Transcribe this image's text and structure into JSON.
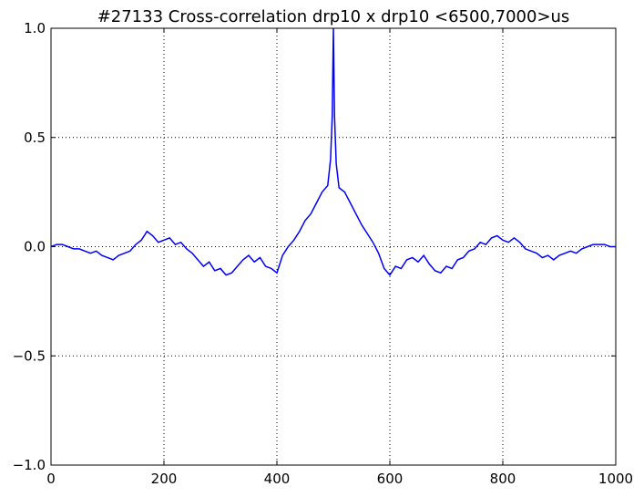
{
  "chart_data": {
    "type": "line",
    "title": "#27133 Cross-correlation drp10 x drp10 <6500,7000>us",
    "x": [
      0,
      10,
      20,
      30,
      40,
      50,
      60,
      70,
      80,
      90,
      100,
      110,
      120,
      130,
      140,
      150,
      160,
      170,
      180,
      190,
      200,
      210,
      220,
      230,
      240,
      250,
      260,
      270,
      280,
      290,
      300,
      310,
      320,
      330,
      340,
      350,
      360,
      370,
      380,
      390,
      400,
      410,
      420,
      430,
      440,
      450,
      460,
      470,
      480,
      490,
      495,
      498,
      500,
      502,
      505,
      510,
      520,
      530,
      540,
      550,
      560,
      570,
      580,
      590,
      600,
      610,
      620,
      630,
      640,
      650,
      660,
      670,
      680,
      690,
      700,
      710,
      720,
      730,
      740,
      750,
      760,
      770,
      780,
      790,
      800,
      810,
      820,
      830,
      840,
      850,
      860,
      870,
      880,
      890,
      900,
      910,
      920,
      930,
      940,
      950,
      960,
      970,
      980,
      990,
      1000
    ],
    "series": [
      {
        "color": "#0000ff",
        "values": [
          0.0,
          0.01,
          0.01,
          0.0,
          -0.01,
          -0.01,
          -0.02,
          -0.03,
          -0.02,
          -0.04,
          -0.05,
          -0.06,
          -0.04,
          -0.03,
          -0.02,
          0.01,
          0.03,
          0.07,
          0.05,
          0.02,
          0.03,
          0.04,
          0.01,
          0.02,
          -0.01,
          -0.03,
          -0.06,
          -0.09,
          -0.07,
          -0.11,
          -0.1,
          -0.13,
          -0.12,
          -0.09,
          -0.06,
          -0.04,
          -0.07,
          -0.05,
          -0.09,
          -0.1,
          -0.12,
          -0.04,
          0.0,
          0.03,
          0.07,
          0.12,
          0.15,
          0.2,
          0.25,
          0.28,
          0.4,
          0.6,
          1.0,
          0.6,
          0.38,
          0.27,
          0.25,
          0.2,
          0.15,
          0.1,
          0.06,
          0.02,
          -0.03,
          -0.1,
          -0.13,
          -0.09,
          -0.1,
          -0.06,
          -0.05,
          -0.07,
          -0.04,
          -0.08,
          -0.11,
          -0.12,
          -0.09,
          -0.1,
          -0.06,
          -0.05,
          -0.02,
          -0.01,
          0.02,
          0.01,
          0.04,
          0.05,
          0.03,
          0.02,
          0.04,
          0.02,
          -0.01,
          -0.02,
          -0.03,
          -0.05,
          -0.04,
          -0.06,
          -0.04,
          -0.03,
          -0.02,
          -0.03,
          -0.01,
          0.0,
          0.01,
          0.01,
          0.01,
          0.0,
          0.0
        ]
      }
    ],
    "xlim": [
      0,
      1000
    ],
    "xticks": [
      0,
      200,
      400,
      600,
      800,
      1000
    ],
    "ylim": [
      -1,
      1
    ],
    "yticks": [
      {
        "value": -1,
        "label": "−1.0"
      },
      {
        "value": -0.5,
        "label": "−0.5"
      },
      {
        "value": 0,
        "label": "0.0"
      },
      {
        "value": 0.5,
        "label": "0.5"
      },
      {
        "value": 1,
        "label": "1.0"
      }
    ],
    "grid": true
  }
}
